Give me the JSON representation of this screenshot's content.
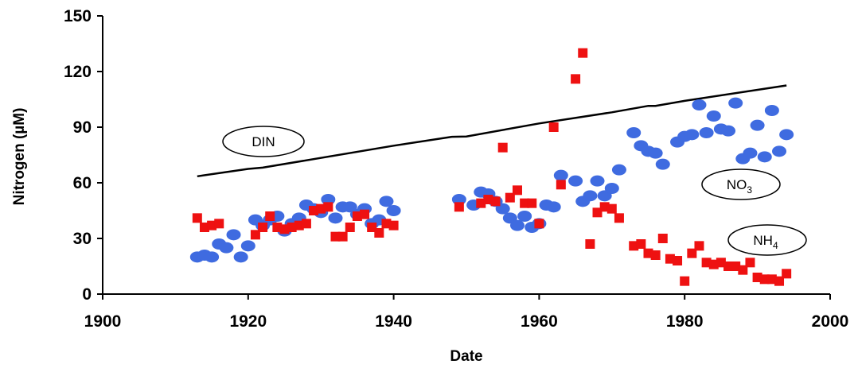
{
  "chart_data": {
    "type": "scatter",
    "xlabel": "Date",
    "ylabel": "Nitrogen (µM)",
    "xlim": [
      1900,
      2000
    ],
    "ylim": [
      0,
      150
    ],
    "xticks": [
      1900,
      1920,
      1940,
      1960,
      1980,
      2000
    ],
    "yticks": [
      0,
      30,
      60,
      90,
      120,
      150
    ],
    "grid": false,
    "annotations": {
      "din": "DIN",
      "no3_base": "NO",
      "no3_sub": "3",
      "nh4_base": "NH",
      "nh4_sub": "4"
    },
    "series": [
      {
        "marker": "circle",
        "color": "#3f6be0",
        "points": [
          [
            1913,
            20
          ],
          [
            1914,
            21
          ],
          [
            1915,
            20
          ],
          [
            1916,
            27
          ],
          [
            1917,
            25
          ],
          [
            1918,
            32
          ],
          [
            1919,
            20
          ],
          [
            1920,
            26
          ],
          [
            1921,
            40
          ],
          [
            1922,
            37
          ],
          [
            1923,
            40
          ],
          [
            1924,
            42
          ],
          [
            1925,
            34
          ],
          [
            1926,
            38
          ],
          [
            1927,
            41
          ],
          [
            1928,
            48
          ],
          [
            1929,
            46
          ],
          [
            1930,
            44
          ],
          [
            1931,
            51
          ],
          [
            1932,
            41
          ],
          [
            1933,
            47
          ],
          [
            1934,
            47
          ],
          [
            1935,
            43
          ],
          [
            1936,
            46
          ],
          [
            1937,
            38
          ],
          [
            1938,
            40
          ],
          [
            1939,
            50
          ],
          [
            1940,
            45
          ],
          [
            1949,
            51
          ],
          [
            1951,
            48
          ],
          [
            1952,
            55
          ],
          [
            1953,
            54
          ],
          [
            1954,
            50
          ],
          [
            1955,
            46
          ],
          [
            1956,
            41
          ],
          [
            1957,
            37
          ],
          [
            1958,
            42
          ],
          [
            1959,
            36
          ],
          [
            1960,
            38
          ],
          [
            1961,
            48
          ],
          [
            1962,
            47
          ],
          [
            1963,
            64
          ],
          [
            1965,
            61
          ],
          [
            1966,
            50
          ],
          [
            1967,
            53
          ],
          [
            1968,
            61
          ],
          [
            1969,
            53
          ],
          [
            1970,
            57
          ],
          [
            1971,
            67
          ],
          [
            1973,
            87
          ],
          [
            1974,
            80
          ],
          [
            1975,
            77
          ],
          [
            1976,
            76
          ],
          [
            1977,
            70
          ],
          [
            1979,
            82
          ],
          [
            1980,
            85
          ],
          [
            1981,
            86
          ],
          [
            1982,
            102
          ],
          [
            1983,
            87
          ],
          [
            1984,
            96
          ],
          [
            1985,
            89
          ],
          [
            1986,
            88
          ],
          [
            1987,
            103
          ],
          [
            1988,
            73
          ],
          [
            1989,
            76
          ],
          [
            1990,
            91
          ],
          [
            1991,
            74
          ],
          [
            1992,
            99
          ],
          [
            1993,
            77
          ],
          [
            1994,
            86
          ]
        ]
      },
      {
        "marker": "square",
        "color": "#ee1111",
        "points": [
          [
            1913,
            41
          ],
          [
            1914,
            36
          ],
          [
            1915,
            37
          ],
          [
            1916,
            38
          ],
          [
            1921,
            32
          ],
          [
            1922,
            36
          ],
          [
            1923,
            42
          ],
          [
            1924,
            36
          ],
          [
            1925,
            35
          ],
          [
            1926,
            36
          ],
          [
            1927,
            37
          ],
          [
            1928,
            38
          ],
          [
            1929,
            45
          ],
          [
            1930,
            46
          ],
          [
            1931,
            47
          ],
          [
            1932,
            31
          ],
          [
            1933,
            31
          ],
          [
            1934,
            36
          ],
          [
            1935,
            42
          ],
          [
            1936,
            43
          ],
          [
            1937,
            36
          ],
          [
            1938,
            33
          ],
          [
            1939,
            38
          ],
          [
            1940,
            37
          ],
          [
            1949,
            47
          ],
          [
            1952,
            49
          ],
          [
            1953,
            51
          ],
          [
            1954,
            50
          ],
          [
            1955,
            79
          ],
          [
            1956,
            52
          ],
          [
            1957,
            56
          ],
          [
            1958,
            49
          ],
          [
            1959,
            49
          ],
          [
            1960,
            38
          ],
          [
            1962,
            90
          ],
          [
            1963,
            59
          ],
          [
            1965,
            116
          ],
          [
            1966,
            130
          ],
          [
            1967,
            27
          ],
          [
            1968,
            44
          ],
          [
            1969,
            47
          ],
          [
            1970,
            46
          ],
          [
            1971,
            41
          ],
          [
            1973,
            26
          ],
          [
            1974,
            27
          ],
          [
            1975,
            22
          ],
          [
            1976,
            21
          ],
          [
            1977,
            30
          ],
          [
            1978,
            19
          ],
          [
            1979,
            18
          ],
          [
            1980,
            7
          ],
          [
            1981,
            22
          ],
          [
            1982,
            26
          ],
          [
            1983,
            17
          ],
          [
            1984,
            16
          ],
          [
            1985,
            17
          ],
          [
            1986,
            15
          ],
          [
            1987,
            15
          ],
          [
            1988,
            13
          ],
          [
            1989,
            17
          ],
          [
            1990,
            9
          ],
          [
            1991,
            8
          ],
          [
            1992,
            8
          ],
          [
            1993,
            7
          ],
          [
            1994,
            11
          ]
        ]
      },
      {
        "marker": "line",
        "color": "#000000",
        "points": [
          [
            1913,
            63.5
          ],
          [
            1920,
            67.5
          ],
          [
            1922,
            68.2
          ],
          [
            1940,
            80
          ],
          [
            1948,
            84.8
          ],
          [
            1950,
            85
          ],
          [
            1960,
            92
          ],
          [
            1970,
            98
          ],
          [
            1975,
            101.5
          ],
          [
            1976,
            101.5
          ],
          [
            1980,
            104.2
          ],
          [
            1994,
            112.5
          ]
        ]
      }
    ]
  }
}
